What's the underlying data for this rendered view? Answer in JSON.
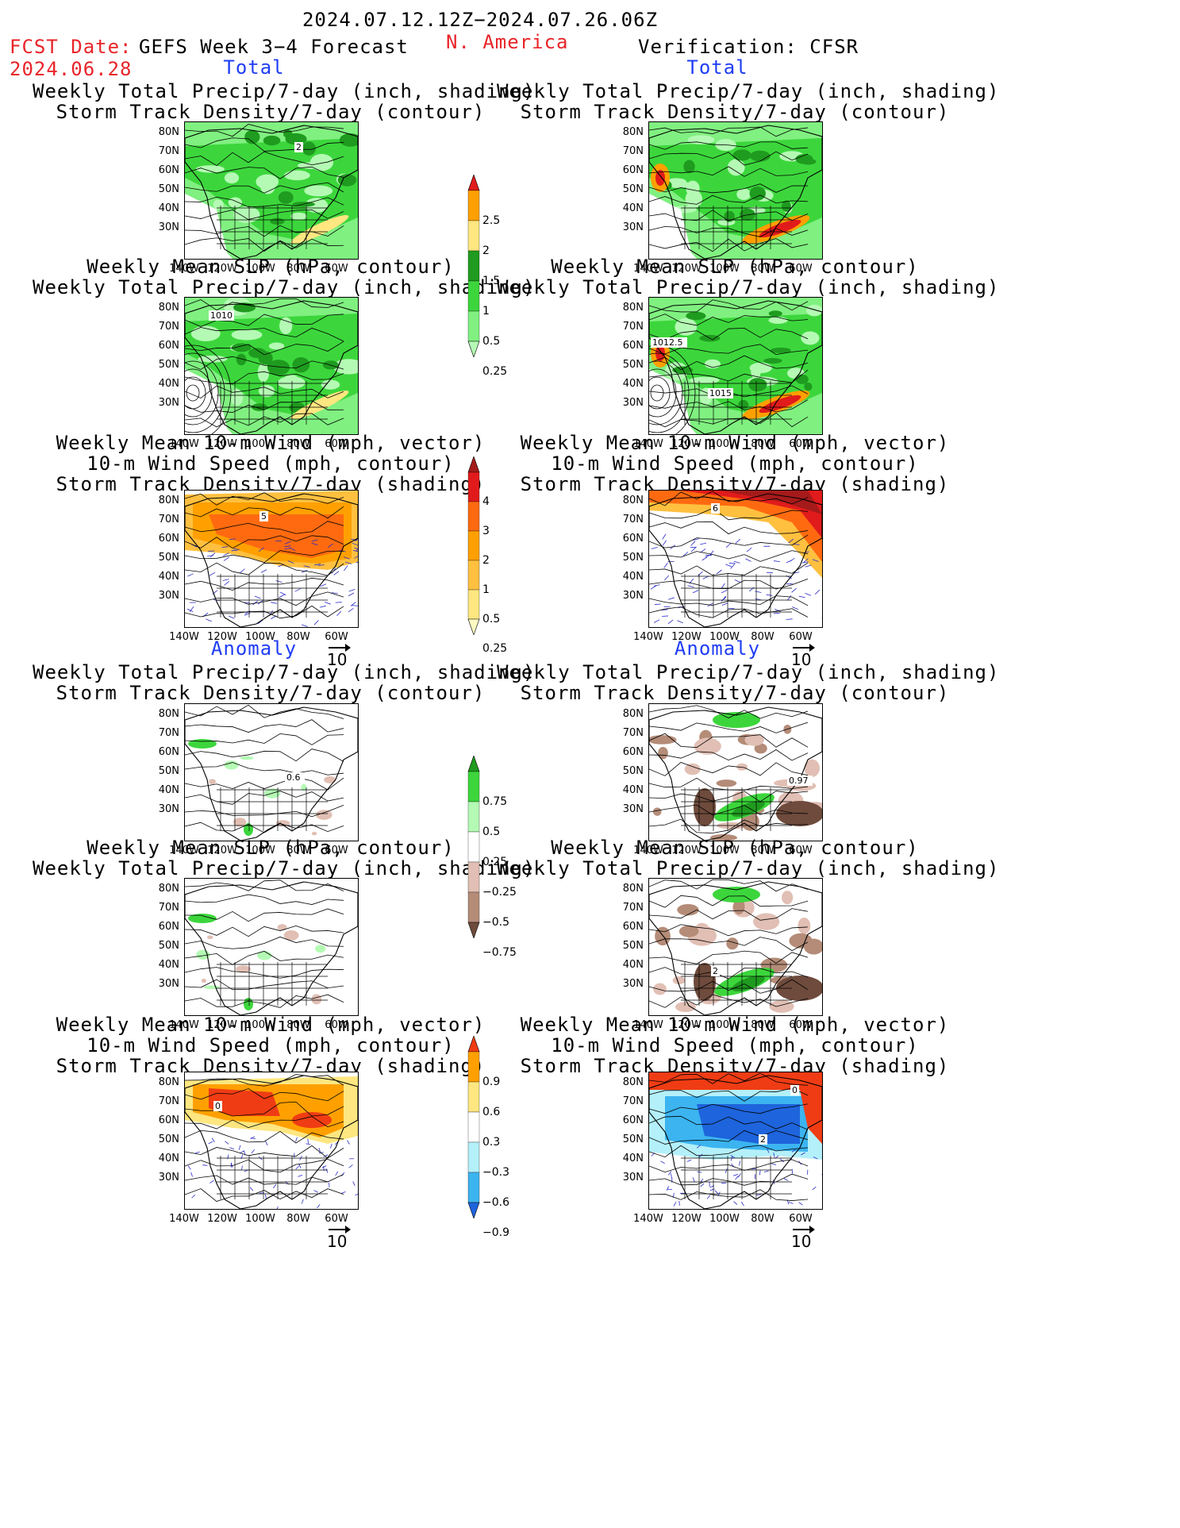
{
  "header": {
    "date_range": "2024.07.12.12Z−2024.07.26.06Z",
    "fcst_label": "FCST Date:",
    "fcst_date": "2024.06.28",
    "model": "GEFS Week 3−4 Forecast",
    "region": "N. America",
    "verification": "Verification: CFSR"
  },
  "sections": {
    "total": "Total",
    "anomaly": "Anomaly"
  },
  "titles": {
    "precip_storm": [
      "Weekly Total Precip/7-day (inch, shading)",
      "Storm Track Density/7-day (contour)"
    ],
    "slp_precip": [
      "Weekly Mean SLP (hPa, contour)",
      "Weekly Total Precip/7-day (inch, shading)"
    ],
    "wind_storm": [
      "Weekly Mean 10-m Wind (mph, vector)",
      "10-m Wind Speed (mph, contour)",
      "Storm Track Density/7-day (shading)"
    ]
  },
  "axes": {
    "lat_labels": [
      "80N",
      "70N",
      "60N",
      "50N",
      "40N",
      "30N"
    ],
    "lon_labels": [
      "140W",
      "120W",
      "100W",
      "80W",
      "60W"
    ],
    "vector_ref": "10"
  },
  "contour_labels": {
    "t_l_precip": "2",
    "t_l_slp": "1010",
    "t_r_slp_a": "1012.5",
    "t_r_slp_b": "1015",
    "t_l_wind": "5",
    "t_r_wind": "6",
    "a_l_precip": "0.6",
    "a_r_precip": "0.97",
    "a_r_slp": "2",
    "a_l_wind": "0",
    "a_r_wind_a": "0",
    "a_r_wind_b": "2"
  },
  "colorbars": {
    "total_precip": {
      "labels": [
        "2.5",
        "2",
        "1.5",
        "1",
        "0.5",
        "0.25"
      ],
      "colors": [
        "#e11b1b",
        "#ffa000",
        "#fee680",
        "#1f9b1f",
        "#3cd63c",
        "#80f080",
        "#b4fab4"
      ]
    },
    "total_storm": {
      "labels": [
        "4",
        "3",
        "2",
        "1",
        "0.5",
        "0.25"
      ],
      "colors": [
        "#a51a1a",
        "#e11b1b",
        "#ff6a10",
        "#ffa000",
        "#ffc040",
        "#fee680",
        "#fffac0"
      ]
    },
    "anom_precip": {
      "labels": [
        "0.75",
        "0.5",
        "0.25",
        "−0.25",
        "−0.5",
        "−0.75"
      ],
      "colors": [
        "#1f9b1f",
        "#3cd63c",
        "#b4fab4",
        "#ffffff",
        "#e1bfb4",
        "#b48c78",
        "#6e4b3c"
      ]
    },
    "anom_storm": {
      "labels": [
        "0.9",
        "0.6",
        "0.3",
        "−0.3",
        "−0.6",
        "−0.9"
      ],
      "colors": [
        "#f03c14",
        "#ffa000",
        "#fee680",
        "#ffffff",
        "#b4f0fa",
        "#3cb4f0",
        "#1e64dc"
      ]
    }
  }
}
